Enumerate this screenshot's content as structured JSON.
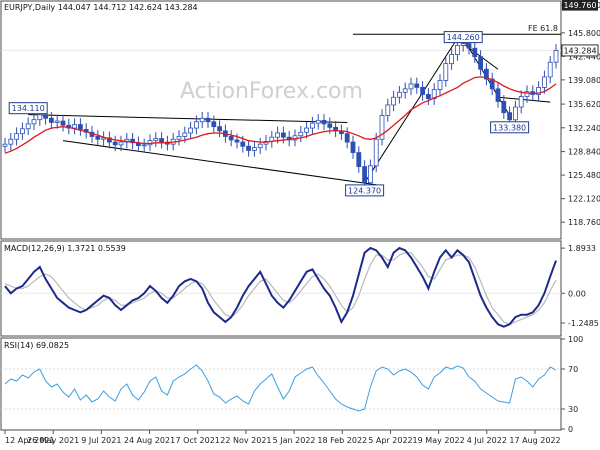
{
  "header": {
    "price_title": "EURJPY,Daily  144.047 144.712 142.624 143.284",
    "macd_title": "MACD(12,26,9) 1.3721 0.5539",
    "rsi_title": "RSI(14) 69.0825"
  },
  "watermark": "ActionForex.com",
  "colors": {
    "candle": "#2d4fb3",
    "ma": "#e0181a",
    "trendline": "#000000",
    "fib_line": "#000000",
    "macd_line": "#1c2a8c",
    "signal_line": "#b9b9b9",
    "rsi_line": "#3d9ee0",
    "label_border": "#1f3a93"
  },
  "chart_data": [
    {
      "type": "line",
      "panel": "price",
      "title": "EURJPY,Daily  144.047 144.712 142.624 143.284",
      "ylim": [
        116.5,
        150.2
      ],
      "grid": false,
      "y_ticks": [
        "149.760",
        "145.800",
        "142.440",
        "139.080",
        "135.620",
        "132.240",
        "128.840",
        "125.480",
        "122.120",
        "118.760"
      ],
      "x_tick_labels": [
        "12 Apr 2021",
        "26 May 2021",
        "9 Jul 2021",
        "24 Aug 2021",
        "7 Oct 2021",
        "22 Nov 2021",
        "5 Jan 2022",
        "18 Feb 2022",
        "5 Apr 2022",
        "19 May 2022",
        "4 Jul 2022",
        "17 Aug 2022"
      ],
      "series": [
        {
          "values": [
            129.9,
            130.6,
            131.4,
            132.1,
            132.8,
            133.4,
            134.1,
            133.6,
            133.0,
            133.2,
            132.6,
            132.2,
            132.7,
            132.0,
            131.6,
            131.0,
            130.6,
            130.8,
            130.2,
            129.8,
            130.2,
            130.6,
            130.1,
            129.7,
            129.8,
            130.4,
            130.7,
            130.2,
            129.9,
            130.6,
            131.0,
            131.5,
            132.2,
            133.1,
            133.6,
            133.1,
            132.4,
            131.8,
            131.0,
            130.5,
            130.2,
            129.6,
            129.0,
            129.4,
            129.9,
            130.3,
            130.9,
            131.5,
            130.9,
            130.5,
            131.1,
            131.6,
            132.2,
            132.9,
            133.3,
            132.8,
            132.3,
            131.8,
            131.4,
            130.2,
            128.7,
            126.7,
            124.4,
            126.8,
            130.6,
            134.0,
            135.5,
            136.6,
            137.3,
            137.8,
            138.5,
            138.0,
            137.0,
            136.4,
            137.7,
            139.0,
            141.4,
            142.7,
            144.0,
            144.26,
            143.6,
            142.4,
            140.6,
            139.2,
            137.8,
            136.0,
            134.4,
            133.38,
            135.2,
            136.7,
            137.4,
            137.0,
            138.0,
            139.5,
            141.6,
            143.284
          ]
        },
        {
          "values": [
            128.6,
            128.9,
            129.3,
            129.8,
            130.3,
            130.9,
            131.4,
            131.9,
            132.2,
            132.3,
            132.4,
            132.3,
            132.1,
            131.9,
            131.7,
            131.4,
            131.2,
            130.9,
            130.7,
            130.5,
            130.4,
            130.3,
            130.2,
            130.1,
            130.0,
            130.0,
            130.1,
            130.1,
            130.1,
            130.2,
            130.3,
            130.5,
            130.7,
            130.9,
            131.2,
            131.4,
            131.5,
            131.5,
            131.4,
            131.2,
            131.0,
            130.7,
            130.4,
            130.3,
            130.2,
            130.2,
            130.3,
            130.4,
            130.5,
            130.6,
            130.7,
            130.8,
            131.0,
            131.3,
            131.5,
            131.7,
            131.8,
            131.8,
            131.8,
            131.7,
            131.4,
            131.1,
            130.7,
            130.6,
            130.8,
            131.3,
            131.9,
            132.6,
            133.3,
            134.0,
            134.8,
            135.3,
            135.8,
            136.1,
            136.5,
            136.8,
            137.2,
            137.6,
            138.0,
            138.6,
            139.0,
            139.4,
            139.5,
            139.4,
            139.1,
            138.7,
            138.2,
            137.8,
            137.5,
            137.3,
            137.2,
            137.1,
            137.2,
            137.4,
            137.9,
            138.5
          ]
        }
      ],
      "trendlines": [
        {
          "from": [
            4,
            134.11
          ],
          "to": [
            59,
            133.0
          ]
        },
        {
          "from": [
            10,
            130.4
          ],
          "to": [
            64,
            124.1
          ]
        },
        {
          "from": [
            62,
            124.37
          ],
          "to": [
            78,
            145.0
          ]
        },
        {
          "from": [
            79,
            145.0
          ],
          "to": [
            87,
            134.0
          ]
        },
        {
          "from": [
            79,
            144.26
          ],
          "to": [
            85,
            140.6
          ]
        },
        {
          "from": [
            85,
            136.6
          ],
          "to": [
            94,
            135.9
          ]
        }
      ],
      "fib_level": {
        "label": "FE 61.8",
        "value": 145.6,
        "from_index": 60
      },
      "price_labels": [
        {
          "text": "134.110",
          "index": 4,
          "value": 134.11
        },
        {
          "text": "124.370",
          "index": 62,
          "value": 124.37
        },
        {
          "text": "144.260",
          "index": 79,
          "value": 144.26
        },
        {
          "text": "133.380",
          "index": 87,
          "value": 133.38
        }
      ],
      "axis_tags": [
        {
          "text": "149.760",
          "value": 149.76,
          "style": "dark"
        },
        {
          "text": "143.284",
          "value": 143.284,
          "style": "white"
        }
      ]
    },
    {
      "type": "line",
      "panel": "macd",
      "title": "MACD(12,26,9) 1.3721 0.5539",
      "ylim": [
        -1.75,
        2.15
      ],
      "y_ticks": [
        "1.8933",
        "0.00",
        "-1.2485"
      ],
      "series": [
        {
          "values": [
            0.3,
            0.0,
            0.2,
            0.3,
            0.6,
            0.9,
            1.1,
            0.6,
            0.2,
            -0.2,
            -0.4,
            -0.6,
            -0.7,
            -0.8,
            -0.7,
            -0.5,
            -0.3,
            -0.1,
            -0.2,
            -0.5,
            -0.7,
            -0.5,
            -0.3,
            -0.2,
            0.0,
            0.3,
            0.1,
            -0.2,
            -0.4,
            -0.1,
            0.3,
            0.5,
            0.6,
            0.5,
            0.2,
            -0.4,
            -0.8,
            -1.0,
            -1.2,
            -1.0,
            -0.6,
            -0.1,
            0.3,
            0.6,
            0.9,
            0.4,
            -0.1,
            -0.4,
            -0.6,
            -0.3,
            0.1,
            0.5,
            0.9,
            1.0,
            0.6,
            0.2,
            -0.1,
            -0.6,
            -1.2,
            -0.8,
            -0.1,
            0.8,
            1.7,
            1.9,
            1.8,
            1.5,
            1.1,
            1.7,
            1.9,
            1.8,
            1.5,
            1.1,
            0.7,
            0.2,
            0.9,
            1.5,
            1.8,
            1.5,
            1.8,
            1.6,
            1.3,
            0.6,
            -0.1,
            -0.6,
            -1.0,
            -1.3,
            -1.4,
            -1.3,
            -1.0,
            -0.9,
            -0.9,
            -0.8,
            -0.5,
            0.0,
            0.7,
            1.37
          ]
        },
        {
          "values": [
            0.4,
            0.3,
            0.2,
            0.2,
            0.3,
            0.5,
            0.7,
            0.8,
            0.7,
            0.4,
            0.1,
            -0.2,
            -0.4,
            -0.6,
            -0.7,
            -0.6,
            -0.5,
            -0.3,
            -0.2,
            -0.3,
            -0.5,
            -0.5,
            -0.4,
            -0.3,
            -0.2,
            0.0,
            0.1,
            0.0,
            -0.2,
            -0.2,
            0.0,
            0.2,
            0.4,
            0.5,
            0.4,
            0.1,
            -0.3,
            -0.6,
            -0.9,
            -1.0,
            -0.8,
            -0.5,
            -0.1,
            0.2,
            0.5,
            0.6,
            0.3,
            0.0,
            -0.3,
            -0.4,
            -0.2,
            0.1,
            0.4,
            0.7,
            0.8,
            0.6,
            0.3,
            -0.1,
            -0.5,
            -0.8,
            -0.6,
            -0.1,
            0.6,
            1.2,
            1.6,
            1.6,
            1.4,
            1.4,
            1.6,
            1.7,
            1.7,
            1.4,
            1.1,
            0.7,
            0.6,
            1.0,
            1.4,
            1.5,
            1.6,
            1.6,
            1.5,
            1.1,
            0.5,
            -0.1,
            -0.6,
            -0.9,
            -1.2,
            -1.3,
            -1.2,
            -1.1,
            -1.0,
            -0.9,
            -0.7,
            -0.4,
            0.1,
            0.55
          ]
        }
      ]
    },
    {
      "type": "line",
      "panel": "rsi",
      "title": "RSI(14) 69.0825",
      "ylim": [
        10,
        100
      ],
      "y_ticks": [
        "100",
        "70",
        "30",
        "0"
      ],
      "series": [
        {
          "values": [
            55,
            60,
            58,
            64,
            61,
            67,
            70,
            58,
            52,
            55,
            47,
            42,
            50,
            39,
            44,
            37,
            40,
            48,
            42,
            38,
            50,
            55,
            44,
            39,
            47,
            58,
            62,
            48,
            44,
            58,
            62,
            65,
            70,
            74,
            68,
            58,
            45,
            42,
            36,
            40,
            43,
            38,
            35,
            48,
            55,
            60,
            65,
            52,
            40,
            48,
            62,
            66,
            70,
            72,
            63,
            56,
            48,
            40,
            35,
            32,
            30,
            28,
            30,
            52,
            68,
            72,
            70,
            64,
            68,
            70,
            67,
            62,
            54,
            50,
            62,
            66,
            72,
            70,
            73,
            71,
            62,
            58,
            50,
            46,
            42,
            38,
            37,
            36,
            60,
            62,
            58,
            52,
            60,
            64,
            72,
            69.08
          ]
        }
      ]
    }
  ]
}
